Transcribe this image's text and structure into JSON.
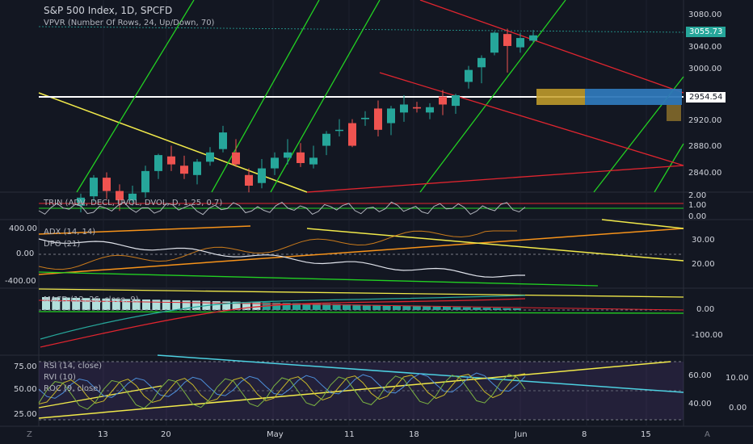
{
  "header": {
    "title": "S&P 500 Index, 1D, SPCFD",
    "vpvr": "VPVR (Number Of Rows, 24, Up/Down, 70)"
  },
  "price_axis": {
    "ticks": [
      "3080.00",
      "3040.00",
      "3000.00",
      "2920.00",
      "2880.00",
      "2840.00"
    ],
    "last_price": "3055.73",
    "level_price": "2954.54"
  },
  "trin": {
    "label": "TRIN (ADV, DECL, UVOL, DVOL, D, 1.25, 0.7)",
    "ticks": [
      "2.00",
      "1.00",
      "0.00"
    ]
  },
  "adx_dpo": {
    "label_adx": "ADX (14, 14)",
    "label_dpo": "DPO (21)",
    "left_ticks": [
      "400.00",
      "0.00",
      "-400.00"
    ],
    "right_ticks": [
      "30.00",
      "20.00"
    ]
  },
  "macd": {
    "label": "MACD (12, 26, close, 9)",
    "ticks": [
      "0.00",
      "-100.00"
    ]
  },
  "rsi": {
    "label_rsi": "RSI (14, close)",
    "label_rvi": "RVI (10)",
    "label_roc": "ROC (9, close)",
    "left_ticks": [
      "75.00",
      "50.00",
      "25.00"
    ],
    "right_ticks_a": [
      "60.00",
      "40.00"
    ],
    "right_ticks_b": [
      "10.00",
      "0.00"
    ]
  },
  "time_axis": {
    "labels": [
      "13",
      "20",
      "May",
      "11",
      "18",
      "Jun",
      "8",
      "15"
    ],
    "z_label": "Z",
    "a_label": "A"
  },
  "colors": {
    "background": "#131722",
    "up": "#26a69a",
    "down": "#ef5350",
    "grid": "#1e222d"
  },
  "chart_data": {
    "type": "candlestick",
    "candles": [
      {
        "o": 2800,
        "h": 2818,
        "l": 2790,
        "c": 2812
      },
      {
        "o": 2814,
        "h": 2846,
        "l": 2806,
        "c": 2842
      },
      {
        "o": 2842,
        "h": 2850,
        "l": 2810,
        "c": 2822
      },
      {
        "o": 2822,
        "h": 2832,
        "l": 2792,
        "c": 2808
      },
      {
        "o": 2808,
        "h": 2830,
        "l": 2800,
        "c": 2818
      },
      {
        "o": 2820,
        "h": 2860,
        "l": 2812,
        "c": 2852
      },
      {
        "o": 2852,
        "h": 2878,
        "l": 2840,
        "c": 2876
      },
      {
        "o": 2874,
        "h": 2890,
        "l": 2852,
        "c": 2862
      },
      {
        "o": 2860,
        "h": 2875,
        "l": 2840,
        "c": 2848
      },
      {
        "o": 2846,
        "h": 2870,
        "l": 2832,
        "c": 2866
      },
      {
        "o": 2866,
        "h": 2888,
        "l": 2860,
        "c": 2880
      },
      {
        "o": 2885,
        "h": 2920,
        "l": 2880,
        "c": 2910
      },
      {
        "o": 2880,
        "h": 2900,
        "l": 2858,
        "c": 2862
      },
      {
        "o": 2846,
        "h": 2856,
        "l": 2820,
        "c": 2830
      },
      {
        "o": 2834,
        "h": 2870,
        "l": 2826,
        "c": 2856
      },
      {
        "o": 2856,
        "h": 2880,
        "l": 2846,
        "c": 2872
      },
      {
        "o": 2872,
        "h": 2900,
        "l": 2862,
        "c": 2880
      },
      {
        "o": 2880,
        "h": 2894,
        "l": 2858,
        "c": 2864
      },
      {
        "o": 2862,
        "h": 2890,
        "l": 2856,
        "c": 2872
      },
      {
        "o": 2890,
        "h": 2912,
        "l": 2876,
        "c": 2908
      },
      {
        "o": 2914,
        "h": 2930,
        "l": 2904,
        "c": 2914
      },
      {
        "o": 2924,
        "h": 2930,
        "l": 2888,
        "c": 2890
      },
      {
        "o": 2930,
        "h": 2942,
        "l": 2920,
        "c": 2932
      },
      {
        "o": 2946,
        "h": 2958,
        "l": 2904,
        "c": 2914
      },
      {
        "o": 2924,
        "h": 2950,
        "l": 2906,
        "c": 2946
      },
      {
        "o": 2940,
        "h": 2966,
        "l": 2926,
        "c": 2952
      },
      {
        "o": 2948,
        "h": 2956,
        "l": 2940,
        "c": 2946
      },
      {
        "o": 2940,
        "h": 2954,
        "l": 2930,
        "c": 2948
      },
      {
        "o": 2964,
        "h": 2974,
        "l": 2936,
        "c": 2952
      },
      {
        "o": 2950,
        "h": 2968,
        "l": 2938,
        "c": 2966
      },
      {
        "o": 2986,
        "h": 3010,
        "l": 2976,
        "c": 3004
      },
      {
        "o": 3008,
        "h": 3026,
        "l": 2984,
        "c": 3022
      },
      {
        "o": 3030,
        "h": 3062,
        "l": 3026,
        "c": 3060
      },
      {
        "o": 3058,
        "h": 3066,
        "l": 3000,
        "c": 3040
      },
      {
        "o": 3038,
        "h": 3060,
        "l": 3030,
        "c": 3052
      },
      {
        "o": 3048,
        "h": 3064,
        "l": 3046,
        "c": 3056
      }
    ]
  }
}
